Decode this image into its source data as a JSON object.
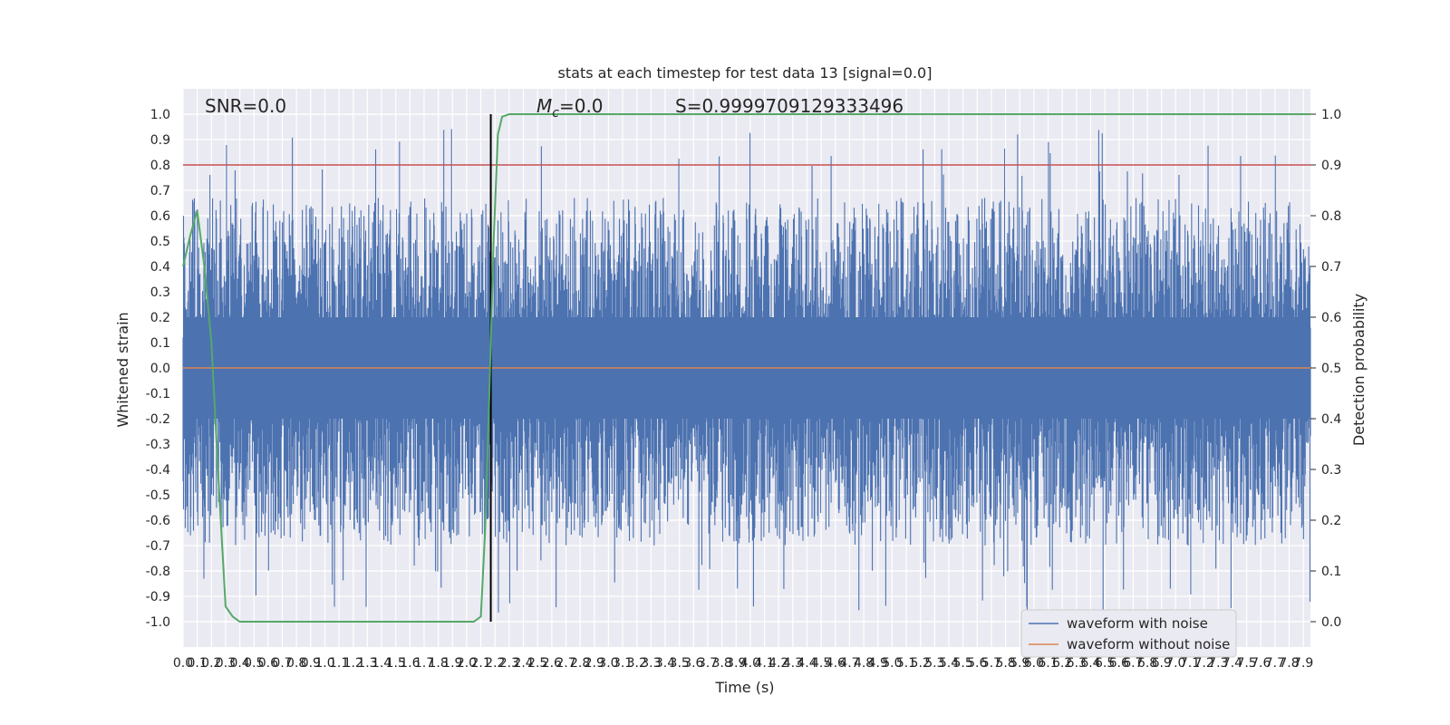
{
  "chart_data": {
    "type": "line",
    "title": "stats at each timestep for test data 13 [signal=0.0]",
    "xlabel": "Time (s)",
    "ylabel": "Whitened strain",
    "y2label": "Detection probability",
    "xlim": [
      0.0,
      7.95
    ],
    "ylim": [
      -1.1,
      1.1
    ],
    "y2lim": [
      -0.05,
      1.05
    ],
    "grid": true,
    "legend_position": "lower-right",
    "annotations": {
      "snr": "SNR=0.0",
      "mc": "M",
      "mc_sub": "c",
      "mc_value": "=0.0",
      "s": "S=0.9999709129333496"
    },
    "yticks": [
      "1.0",
      "0.9",
      "0.8",
      "0.7",
      "0.6",
      "0.5",
      "0.4",
      "0.3",
      "0.2",
      "0.1",
      "0.0",
      "-0.1",
      "-0.2",
      "-0.3",
      "-0.4",
      "-0.5",
      "-0.6",
      "-0.7",
      "-0.8",
      "-0.9",
      "-1.0"
    ],
    "y2ticks": [
      "1.0",
      "0.9",
      "0.8",
      "0.7",
      "0.6",
      "0.5",
      "0.4",
      "0.3",
      "0.2",
      "0.1",
      "0.0"
    ],
    "xticks": [
      "0.0",
      "0.1",
      "0.2",
      "0.3",
      "0.4",
      "0.5",
      "0.6",
      "0.7",
      "0.8",
      "0.9",
      "1.0",
      "1.1",
      "1.2",
      "1.3",
      "1.4",
      "1.5",
      "1.6",
      "1.7",
      "1.8",
      "1.9",
      "2.0",
      "2.1",
      "2.2",
      "2.3",
      "2.4",
      "2.5",
      "2.6",
      "2.7",
      "2.8",
      "2.9",
      "3.0",
      "3.1",
      "3.2",
      "3.3",
      "3.4",
      "3.5",
      "3.6",
      "3.7",
      "3.8",
      "3.9",
      "4.0",
      "4.1",
      "4.2",
      "4.3",
      "4.4",
      "4.5",
      "4.6",
      "4.7",
      "4.8",
      "4.9",
      "5.0",
      "5.1",
      "5.2",
      "5.3",
      "5.4",
      "5.5",
      "5.6",
      "5.7",
      "5.8",
      "5.9",
      "6.0",
      "6.1",
      "6.2",
      "6.3",
      "6.4",
      "6.5",
      "6.6",
      "6.7",
      "6.8",
      "6.9",
      "7.0",
      "7.1",
      "7.2",
      "7.3",
      "7.4",
      "7.5",
      "7.6",
      "7.7",
      "7.8",
      "7.9"
    ],
    "threshold": 0.9,
    "marker_time": 2.17,
    "series": [
      {
        "name": "waveform with noise",
        "color": "#4c72b0",
        "description": "noise band",
        "amplitude_typical": 0.45,
        "amplitude_max": 1.0
      },
      {
        "name": "waveform without noise",
        "color": "#dd8452",
        "values_constant": 0.0
      },
      {
        "color": "#55a868",
        "x": [
          0.0,
          0.05,
          0.1,
          0.15,
          0.2,
          0.25,
          0.3,
          0.35,
          0.4,
          0.5,
          1.0,
          1.5,
          2.0,
          2.05,
          2.1,
          2.13,
          2.16,
          2.19,
          2.22,
          2.25,
          2.3,
          2.35,
          7.95
        ],
        "values": [
          0.7,
          0.76,
          0.81,
          0.7,
          0.55,
          0.28,
          0.03,
          0.01,
          0.0,
          0.0,
          0.0,
          0.0,
          0.0,
          0.0,
          0.01,
          0.18,
          0.45,
          0.75,
          0.96,
          0.995,
          1.0,
          1.0,
          1.0
        ]
      },
      {
        "color": "#c44e52",
        "values_constant": 0.9
      }
    ]
  }
}
